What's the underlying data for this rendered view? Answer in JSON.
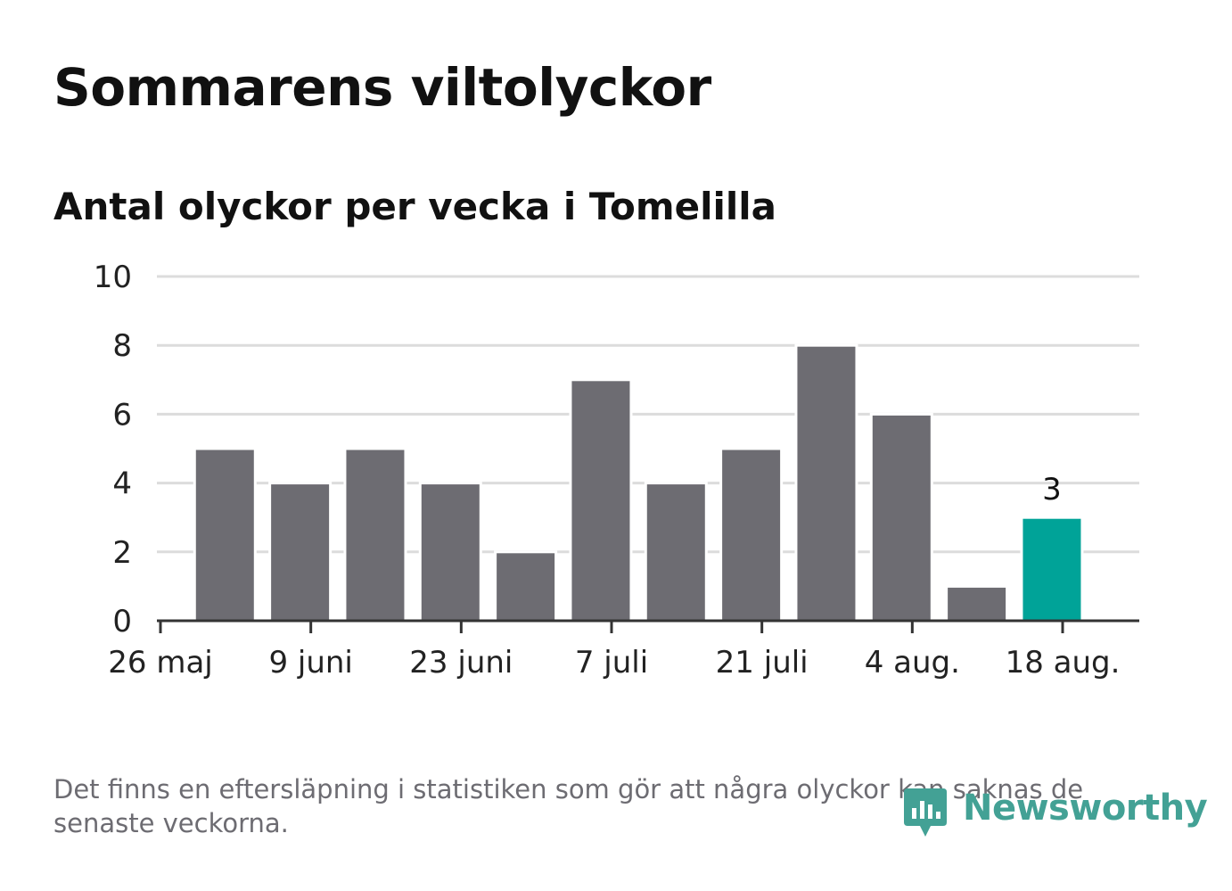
{
  "title": "Sommarens viltolyckor",
  "subtitle": "Antal olyckor per vecka i Tomelilla",
  "note": "Det finns en eftersläpning i statistiken som gör att några olyckor kan saknas de senaste veckorna.",
  "logo": {
    "text": "Newsworthy",
    "icon": "newsworthy-logo-icon"
  },
  "colors": {
    "bar": "#6d6c72",
    "highlight": "#00a398",
    "grid": "#dcdcdc",
    "axis": "#333333",
    "logo": "#43a195"
  },
  "chart_data": {
    "type": "bar",
    "title": "Antal olyckor per vecka i Tomelilla",
    "xlabel": "",
    "ylabel": "",
    "categories": [
      "2025-05-26",
      "2025-06-02",
      "2025-06-09",
      "2025-06-16",
      "2025-06-23",
      "2025-06-30",
      "2025-07-07",
      "2025-07-14",
      "2025-07-21",
      "2025-07-28",
      "2025-08-04",
      "2025-08-11"
    ],
    "values": [
      5,
      4,
      5,
      4,
      2,
      7,
      4,
      5,
      8,
      6,
      1,
      3
    ],
    "highlight_index": 11,
    "data_labels": [
      {
        "index": 11,
        "text": "3"
      }
    ],
    "ylim": [
      0,
      10
    ],
    "yticks": [
      0,
      2,
      4,
      6,
      8,
      10
    ],
    "xticks": [
      {
        "date": "2025-05-26",
        "label": "26 maj"
      },
      {
        "date": "2025-06-09",
        "label": "9 juni"
      },
      {
        "date": "2025-06-23",
        "label": "23 juni"
      },
      {
        "date": "2025-07-07",
        "label": "7 juli"
      },
      {
        "date": "2025-07-21",
        "label": "21 juli"
      },
      {
        "date": "2025-08-04",
        "label": "4 aug."
      },
      {
        "date": "2025-08-18",
        "label": "18 aug."
      }
    ],
    "grid": true,
    "legend": "none"
  }
}
